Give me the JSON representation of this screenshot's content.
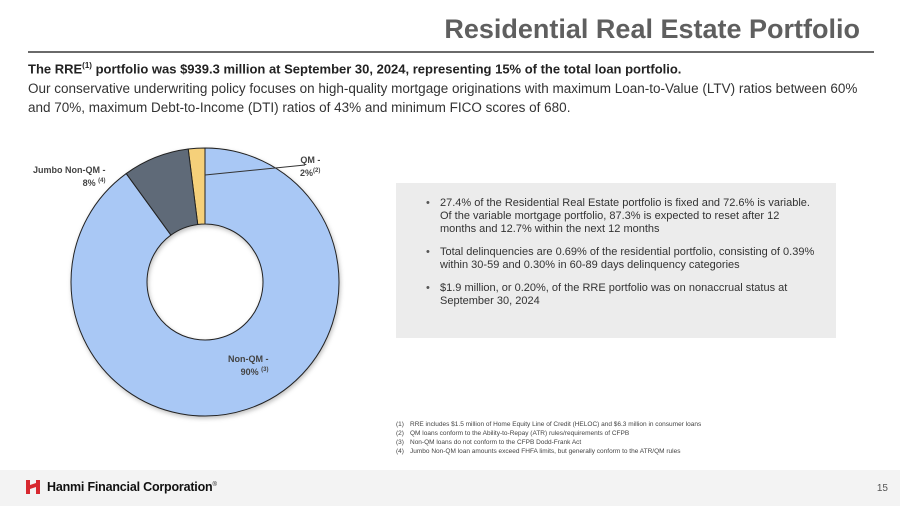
{
  "header": {
    "title": "Residential Real Estate Portfolio"
  },
  "summary": {
    "lead_prefix": "The RRE",
    "lead_sup": "(1)",
    "lead_rest": " portfolio was $939.3 million at September 30, 2024, representing 15% of the total loan portfolio.",
    "intro": "Our conservative underwriting policy focuses on high-quality mortgage originations with maximum Loan-to-Value (LTV) ratios between 60% and 70%, maximum Debt-to-Income (DTI) ratios of 43% and minimum FICO scores of 680."
  },
  "chart_data": {
    "type": "pie",
    "title": "",
    "slices": [
      {
        "name": "Non-QM",
        "value": 90,
        "sup": "(3)",
        "color": "#a9c8f5"
      },
      {
        "name": "Jumbo Non-QM",
        "value": 8,
        "sup": "(4)",
        "color": "#5f6b78"
      },
      {
        "name": "QM",
        "value": 2,
        "sup": "(2)",
        "color": "#f5d07a"
      }
    ],
    "labels": {
      "non_qm_line1": "Non-QM -",
      "non_qm_line2": "90%",
      "non_qm_sup": "(3)",
      "jumbo_line1": "Jumbo Non-QM -",
      "jumbo_line2": "8%",
      "jumbo_sup": "(4)",
      "qm_line1": "QM -",
      "qm_line2": "2%",
      "qm_sup": "(2)"
    }
  },
  "bullets": [
    "27.4% of the Residential Real Estate portfolio is fixed and 72.6% is variable. Of the variable mortgage portfolio, 87.3% is expected to reset after 12 months and 12.7% within the next 12 months",
    "Total delinquencies are 0.69% of the residential portfolio, consisting of 0.39% within 30-59 and 0.30% in 60-89 days delinquency categories",
    "$1.9 million, or 0.20%, of the RRE portfolio was on nonaccrual status at September 30, 2024"
  ],
  "footnotes": [
    {
      "num": "(1)",
      "text": "RRE includes $1.5 million of Home Equity Line of Credit (HELOC) and $6.3 million in consumer loans"
    },
    {
      "num": "(2)",
      "text": "QM loans conform to the Ability-to-Repay (ATR) rules/requirements of CFPB"
    },
    {
      "num": "(3)",
      "text": "Non-QM loans do not conform to the CFPB Dodd-Frank Act"
    },
    {
      "num": "(4)",
      "text": "Jumbo Non-QM loan amounts exceed FHFA limits, but generally conform to the ATR/QM rules"
    }
  ],
  "footer": {
    "company": "Hanmi Financial Corporation",
    "trademark": "®",
    "page": "15",
    "brand_color": "#d7282f"
  }
}
